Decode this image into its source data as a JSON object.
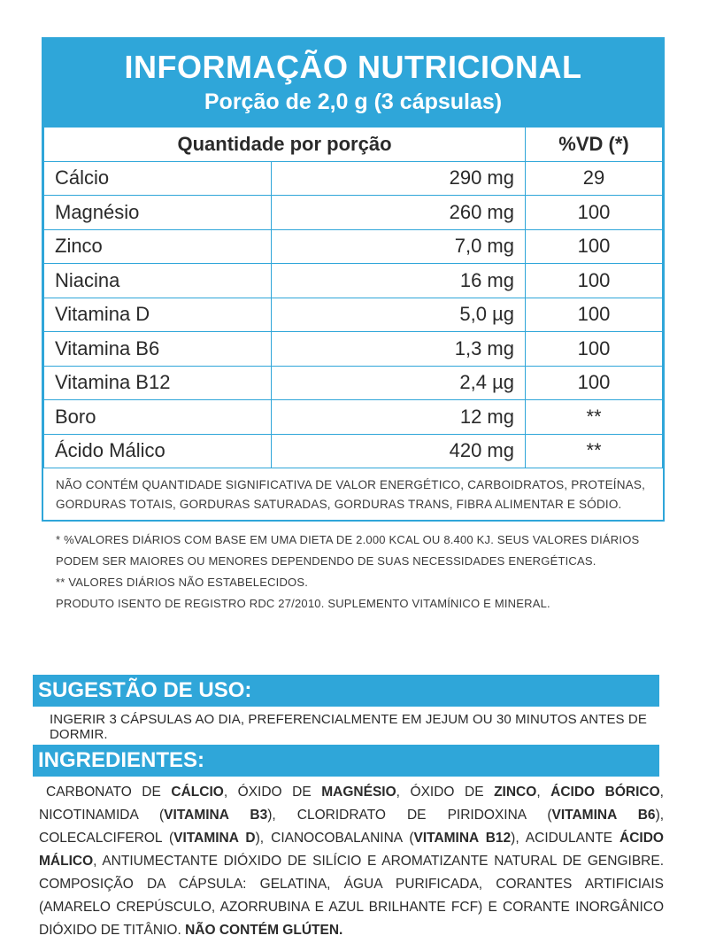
{
  "header": {
    "title": "INFORMAÇÃO NUTRICIONAL",
    "subtitle": "Porção de 2,0 g (3 cápsulas)"
  },
  "table": {
    "col_qty": "Quantidade por porção",
    "col_vd": "%VD (*)",
    "rows": [
      {
        "name": "Cálcio",
        "amount": "290 mg",
        "vd": "29"
      },
      {
        "name": "Magnésio",
        "amount": "260 mg",
        "vd": "100"
      },
      {
        "name": "Zinco",
        "amount": "7,0 mg",
        "vd": "100"
      },
      {
        "name": "Niacina",
        "amount": "16 mg",
        "vd": "100"
      },
      {
        "name": "Vitamina D",
        "amount": "5,0 µg",
        "vd": "100"
      },
      {
        "name": "Vitamina B6",
        "amount": "1,3 mg",
        "vd": "100"
      },
      {
        "name": "Vitamina B12",
        "amount": "2,4 µg",
        "vd": "100"
      },
      {
        "name": "Boro",
        "amount": "12 mg",
        "vd": "**"
      },
      {
        "name": "Ácido Málico",
        "amount": "420 mg",
        "vd": "**"
      }
    ],
    "note_line1": "NÃO CONTÉM QUANTIDADE SIGNIFICATIVA DE VALOR ENERGÉTICO, CARBOIDRATOS, PROTEÍNAS,",
    "note_line2": "GORDURAS TOTAIS, GORDURAS SATURADAS, GORDURAS TRANS, FIBRA ALIMENTAR E SÓDIO."
  },
  "footnotes": {
    "line1": "* %VALORES DIÁRIOS COM BASE EM UMA DIETA DE 2.000 KCAL OU 8.400 KJ. SEUS VALORES DIÁRIOS",
    "line2": "PODEM SER MAIORES OU MENORES DEPENDENDO DE SUAS NECESSIDADES ENERGÉTICAS.",
    "line3": "** VALORES DIÁRIOS NÃO ESTABELECIDOS.",
    "line4": "PRODUTO ISENTO DE REGISTRO RDC 27/2010. SUPLEMENTO VITAMÍNICO E MINERAL."
  },
  "usage": {
    "heading": "SUGESTÃO DE USO:",
    "text": "INGERIR 3 CÁPSULAS AO DIA, PREFERENCIALMENTE EM JEJUM OU 30 MINUTOS ANTES DE DORMIR."
  },
  "ingredients": {
    "heading": "INGREDIENTES:",
    "parts": [
      {
        "t": "CARBONATO DE ",
        "b": false
      },
      {
        "t": "CÁLCIO",
        "b": true
      },
      {
        "t": ", ÓXIDO DE ",
        "b": false
      },
      {
        "t": "MAGNÉSIO",
        "b": true
      },
      {
        "t": ", ÓXIDO DE ",
        "b": false
      },
      {
        "t": "ZINCO",
        "b": true
      },
      {
        "t": ", ",
        "b": false
      },
      {
        "t": "ÁCIDO BÓRICO",
        "b": true
      },
      {
        "t": ", NICOTINAMIDA (",
        "b": false
      },
      {
        "t": "VITAMINA B3",
        "b": true
      },
      {
        "t": "), CLORIDRATO DE PIRIDOXINA (",
        "b": false
      },
      {
        "t": "VITAMINA B6",
        "b": true
      },
      {
        "t": "), COLECALCIFEROL (",
        "b": false
      },
      {
        "t": "VITAMINA D",
        "b": true
      },
      {
        "t": "), CIANOCOBALANINA (",
        "b": false
      },
      {
        "t": "VITAMINA B12",
        "b": true
      },
      {
        "t": "), ACIDULANTE ",
        "b": false
      },
      {
        "t": "ÁCIDO MÁLICO",
        "b": true
      },
      {
        "t": ", ANTIUMECTANTE DIÓXIDO DE SILÍCIO E AROMATIZANTE NATURAL DE GENGIBRE. COMPOSIÇÃO DA CÁPSULA: GELATINA, ÁGUA PURIFICADA, CORANTES ARTIFICIAIS (AMARELO CREPÚSCULO, AZORRUBINA E AZUL BRILHANTE FCF) E CORANTE INORGÂNICO DIÓXIDO DE TITÂNIO. ",
        "b": false
      },
      {
        "t": "NÃO CONTÉM GLÚTEN.",
        "b": true
      }
    ]
  },
  "colors": {
    "accent": "#2fa6d9",
    "text": "#2a2a2a"
  }
}
